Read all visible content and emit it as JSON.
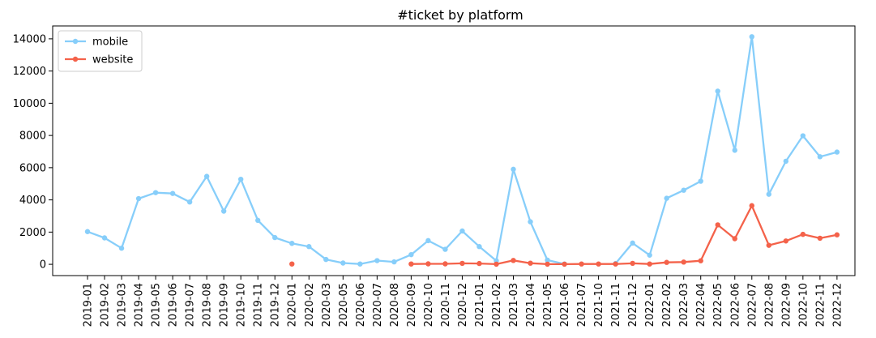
{
  "chart_data": {
    "type": "line",
    "title": "#ticket by platform",
    "xlabel": "",
    "ylabel": "",
    "categories": [
      "2019-01",
      "2019-02",
      "2019-03",
      "2019-04",
      "2019-05",
      "2019-06",
      "2019-07",
      "2019-08",
      "2019-09",
      "2019-10",
      "2019-11",
      "2019-12",
      "2020-01",
      "2020-02",
      "2020-03",
      "2020-05",
      "2020-06",
      "2020-07",
      "2020-08",
      "2020-09",
      "2020-10",
      "2020-11",
      "2020-12",
      "2021-01",
      "2021-02",
      "2021-03",
      "2021-04",
      "2021-05",
      "2021-06",
      "2021-07",
      "2021-10",
      "2021-11",
      "2021-12",
      "2022-01",
      "2022-02",
      "2022-03",
      "2022-04",
      "2022-05",
      "2022-06",
      "2022-07",
      "2022-08",
      "2022-09",
      "2022-10",
      "2022-11",
      "2022-12"
    ],
    "ylim": [
      -700,
      14800
    ],
    "yticks": [
      0,
      2000,
      4000,
      6000,
      8000,
      10000,
      12000,
      14000
    ],
    "legend_position": "upper-left",
    "grid": false,
    "series": [
      {
        "name": "mobile",
        "color": "#87cefa",
        "values": [
          2030,
          1640,
          1000,
          4080,
          4450,
          4400,
          3870,
          5460,
          3300,
          5280,
          2730,
          1660,
          1300,
          1100,
          300,
          80,
          20,
          230,
          150,
          600,
          1470,
          930,
          2070,
          1100,
          220,
          5900,
          2640,
          260,
          20,
          null,
          null,
          50,
          1320,
          570,
          4100,
          4600,
          5160,
          10750,
          7080,
          14130,
          4350,
          6400,
          7980,
          6680,
          6970
        ]
      },
      {
        "name": "website",
        "color": "#f4624a",
        "values": [
          null,
          null,
          null,
          null,
          null,
          null,
          null,
          null,
          null,
          null,
          null,
          null,
          20,
          null,
          null,
          null,
          null,
          null,
          null,
          20,
          30,
          30,
          60,
          50,
          10,
          240,
          70,
          10,
          10,
          20,
          20,
          20,
          60,
          20,
          120,
          140,
          220,
          2450,
          1590,
          3640,
          1180,
          1450,
          1860,
          1620,
          1830
        ]
      }
    ]
  }
}
